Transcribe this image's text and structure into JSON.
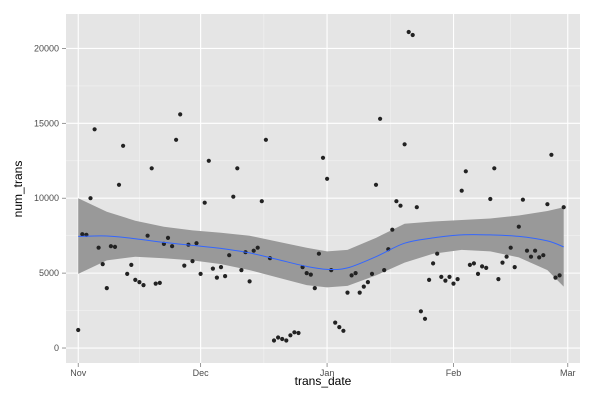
{
  "chart_data": {
    "type": "scatter",
    "xlabel": "trans_date",
    "ylabel": "num_trans",
    "x_range": [
      "2012-10-29",
      "2013-03-04"
    ],
    "ylim": [
      -1000,
      22300
    ],
    "x_ticks": [
      {
        "date": "2012-11-01",
        "label": "Nov"
      },
      {
        "date": "2012-12-01",
        "label": "Dec"
      },
      {
        "date": "2013-01-01",
        "label": "Jan"
      },
      {
        "date": "2013-02-01",
        "label": "Feb"
      },
      {
        "date": "2013-03-01",
        "label": "Mar"
      }
    ],
    "y_ticks": [
      {
        "value": 0,
        "label": "0"
      },
      {
        "value": 5000,
        "label": "5000"
      },
      {
        "value": 10000,
        "label": "10000"
      },
      {
        "value": 15000,
        "label": "15000"
      },
      {
        "value": 20000,
        "label": "20000"
      }
    ],
    "grid": true,
    "legend": "none",
    "colors": {
      "panel": "#e5e5e5",
      "grid_major": "#ffffff",
      "grid_minor": "#f2f2f2",
      "points": "#222222",
      "smooth_line": "#3366ff",
      "ribbon": "#999999"
    },
    "points": [
      [
        "2012-11-01",
        1200
      ],
      [
        "2012-11-02",
        7600
      ],
      [
        "2012-11-03",
        7550
      ],
      [
        "2012-11-04",
        10000
      ],
      [
        "2012-11-05",
        14600
      ],
      [
        "2012-11-06",
        6700
      ],
      [
        "2012-11-07",
        5600
      ],
      [
        "2012-11-08",
        4000
      ],
      [
        "2012-11-09",
        6800
      ],
      [
        "2012-11-10",
        6750
      ],
      [
        "2012-11-11",
        10900
      ],
      [
        "2012-11-12",
        13500
      ],
      [
        "2012-11-13",
        4950
      ],
      [
        "2012-11-14",
        5550
      ],
      [
        "2012-11-15",
        4550
      ],
      [
        "2012-11-16",
        4400
      ],
      [
        "2012-11-17",
        4200
      ],
      [
        "2012-11-18",
        7500
      ],
      [
        "2012-11-19",
        12000
      ],
      [
        "2012-11-20",
        4300
      ],
      [
        "2012-11-21",
        4350
      ],
      [
        "2012-11-22",
        6950
      ],
      [
        "2012-11-23",
        7350
      ],
      [
        "2012-11-24",
        6800
      ],
      [
        "2012-11-25",
        13900
      ],
      [
        "2012-11-26",
        15600
      ],
      [
        "2012-11-27",
        5500
      ],
      [
        "2012-11-28",
        6900
      ],
      [
        "2012-11-29",
        5800
      ],
      [
        "2012-11-30",
        7000
      ],
      [
        "2012-12-01",
        4950
      ],
      [
        "2012-12-02",
        9700
      ],
      [
        "2012-12-03",
        12500
      ],
      [
        "2012-12-04",
        5300
      ],
      [
        "2012-12-05",
        4700
      ],
      [
        "2012-12-06",
        5400
      ],
      [
        "2012-12-07",
        4800
      ],
      [
        "2012-12-08",
        6200
      ],
      [
        "2012-12-09",
        10100
      ],
      [
        "2012-12-10",
        12000
      ],
      [
        "2012-12-11",
        5200
      ],
      [
        "2012-12-12",
        6400
      ],
      [
        "2012-12-13",
        4450
      ],
      [
        "2012-12-14",
        6500
      ],
      [
        "2012-12-15",
        6700
      ],
      [
        "2012-12-16",
        9800
      ],
      [
        "2012-12-17",
        13900
      ],
      [
        "2012-12-18",
        6000
      ],
      [
        "2012-12-19",
        500
      ],
      [
        "2012-12-20",
        700
      ],
      [
        "2012-12-21",
        600
      ],
      [
        "2012-12-22",
        500
      ],
      [
        "2012-12-23",
        850
      ],
      [
        "2012-12-24",
        1050
      ],
      [
        "2012-12-25",
        1000
      ],
      [
        "2012-12-26",
        5400
      ],
      [
        "2012-12-27",
        5000
      ],
      [
        "2012-12-28",
        4900
      ],
      [
        "2012-12-29",
        4000
      ],
      [
        "2012-12-30",
        6300
      ],
      [
        "2012-12-31",
        12700
      ],
      [
        "2013-01-01",
        11300
      ],
      [
        "2013-01-02",
        5200
      ],
      [
        "2013-01-03",
        1700
      ],
      [
        "2013-01-04",
        1400
      ],
      [
        "2013-01-05",
        1150
      ],
      [
        "2013-01-06",
        3700
      ],
      [
        "2013-01-07",
        4850
      ],
      [
        "2013-01-08",
        5000
      ],
      [
        "2013-01-09",
        3700
      ],
      [
        "2013-01-10",
        4100
      ],
      [
        "2013-01-11",
        4400
      ],
      [
        "2013-01-12",
        4950
      ],
      [
        "2013-01-13",
        10900
      ],
      [
        "2013-01-14",
        15300
      ],
      [
        "2013-01-15",
        5200
      ],
      [
        "2013-01-16",
        6600
      ],
      [
        "2013-01-17",
        7900
      ],
      [
        "2013-01-18",
        9800
      ],
      [
        "2013-01-19",
        9500
      ],
      [
        "2013-01-20",
        13600
      ],
      [
        "2013-01-21",
        21100
      ],
      [
        "2013-01-22",
        20900
      ],
      [
        "2013-01-23",
        9400
      ],
      [
        "2013-01-24",
        2450
      ],
      [
        "2013-01-25",
        1950
      ],
      [
        "2013-01-26",
        4550
      ],
      [
        "2013-01-27",
        5650
      ],
      [
        "2013-01-28",
        6300
      ],
      [
        "2013-01-29",
        4750
      ],
      [
        "2013-01-30",
        4500
      ],
      [
        "2013-01-31",
        4750
      ],
      [
        "2013-02-01",
        4300
      ],
      [
        "2013-02-02",
        4600
      ],
      [
        "2013-02-03",
        10500
      ],
      [
        "2013-02-04",
        11800
      ],
      [
        "2013-02-05",
        5550
      ],
      [
        "2013-02-06",
        5650
      ],
      [
        "2013-02-07",
        4950
      ],
      [
        "2013-02-08",
        5450
      ],
      [
        "2013-02-09",
        5350
      ],
      [
        "2013-02-10",
        9950
      ],
      [
        "2013-02-11",
        12000
      ],
      [
        "2013-02-12",
        4600
      ],
      [
        "2013-02-13",
        5700
      ],
      [
        "2013-02-14",
        6100
      ],
      [
        "2013-02-15",
        6700
      ],
      [
        "2013-02-16",
        5400
      ],
      [
        "2013-02-17",
        8100
      ],
      [
        "2013-02-18",
        9900
      ],
      [
        "2013-02-19",
        6500
      ],
      [
        "2013-02-20",
        6100
      ],
      [
        "2013-02-21",
        6500
      ],
      [
        "2013-02-22",
        6050
      ],
      [
        "2013-02-23",
        6200
      ],
      [
        "2013-02-24",
        9600
      ],
      [
        "2013-02-25",
        12900
      ],
      [
        "2013-02-26",
        4700
      ],
      [
        "2013-02-27",
        4850
      ],
      [
        "2013-02-28",
        9400
      ]
    ],
    "smooth_curve": [
      [
        "2012-11-01",
        7450
      ],
      [
        "2012-11-08",
        7480
      ],
      [
        "2012-11-15",
        7300
      ],
      [
        "2012-11-22",
        7050
      ],
      [
        "2012-11-29",
        6850
      ],
      [
        "2012-12-06",
        6650
      ],
      [
        "2012-12-13",
        6350
      ],
      [
        "2012-12-20",
        5900
      ],
      [
        "2012-12-27",
        5450
      ],
      [
        "2013-01-01",
        5250
      ],
      [
        "2013-01-06",
        5350
      ],
      [
        "2013-01-13",
        6100
      ],
      [
        "2013-01-20",
        7000
      ],
      [
        "2013-01-27",
        7350
      ],
      [
        "2013-02-03",
        7550
      ],
      [
        "2013-02-10",
        7550
      ],
      [
        "2013-02-17",
        7450
      ],
      [
        "2013-02-24",
        7150
      ],
      [
        "2013-02-28",
        6750
      ]
    ],
    "ribbon_lower": [
      [
        "2012-11-01",
        4950
      ],
      [
        "2012-11-08",
        5850
      ],
      [
        "2012-11-15",
        6100
      ],
      [
        "2012-11-22",
        6000
      ],
      [
        "2012-11-29",
        5850
      ],
      [
        "2012-12-06",
        5600
      ],
      [
        "2012-12-13",
        5200
      ],
      [
        "2012-12-20",
        4700
      ],
      [
        "2012-12-27",
        4200
      ],
      [
        "2013-01-01",
        4050
      ],
      [
        "2013-01-06",
        4150
      ],
      [
        "2013-01-13",
        4850
      ],
      [
        "2013-01-20",
        5700
      ],
      [
        "2013-01-27",
        6300
      ],
      [
        "2013-02-03",
        6550
      ],
      [
        "2013-02-10",
        6450
      ],
      [
        "2013-02-17",
        6050
      ],
      [
        "2013-02-24",
        5200
      ],
      [
        "2013-02-28",
        4100
      ]
    ],
    "ribbon_upper": [
      [
        "2012-11-01",
        10000
      ],
      [
        "2012-11-08",
        9100
      ],
      [
        "2012-11-15",
        8500
      ],
      [
        "2012-11-22",
        8100
      ],
      [
        "2012-11-29",
        7850
      ],
      [
        "2012-12-06",
        7700
      ],
      [
        "2012-12-13",
        7500
      ],
      [
        "2012-12-20",
        7100
      ],
      [
        "2012-12-27",
        6700
      ],
      [
        "2013-01-01",
        6450
      ],
      [
        "2013-01-06",
        6550
      ],
      [
        "2013-01-13",
        7350
      ],
      [
        "2013-01-20",
        8300
      ],
      [
        "2013-01-27",
        8450
      ],
      [
        "2013-02-03",
        8550
      ],
      [
        "2013-02-10",
        8650
      ],
      [
        "2013-02-17",
        8850
      ],
      [
        "2013-02-24",
        9150
      ],
      [
        "2013-02-28",
        9400
      ]
    ]
  }
}
